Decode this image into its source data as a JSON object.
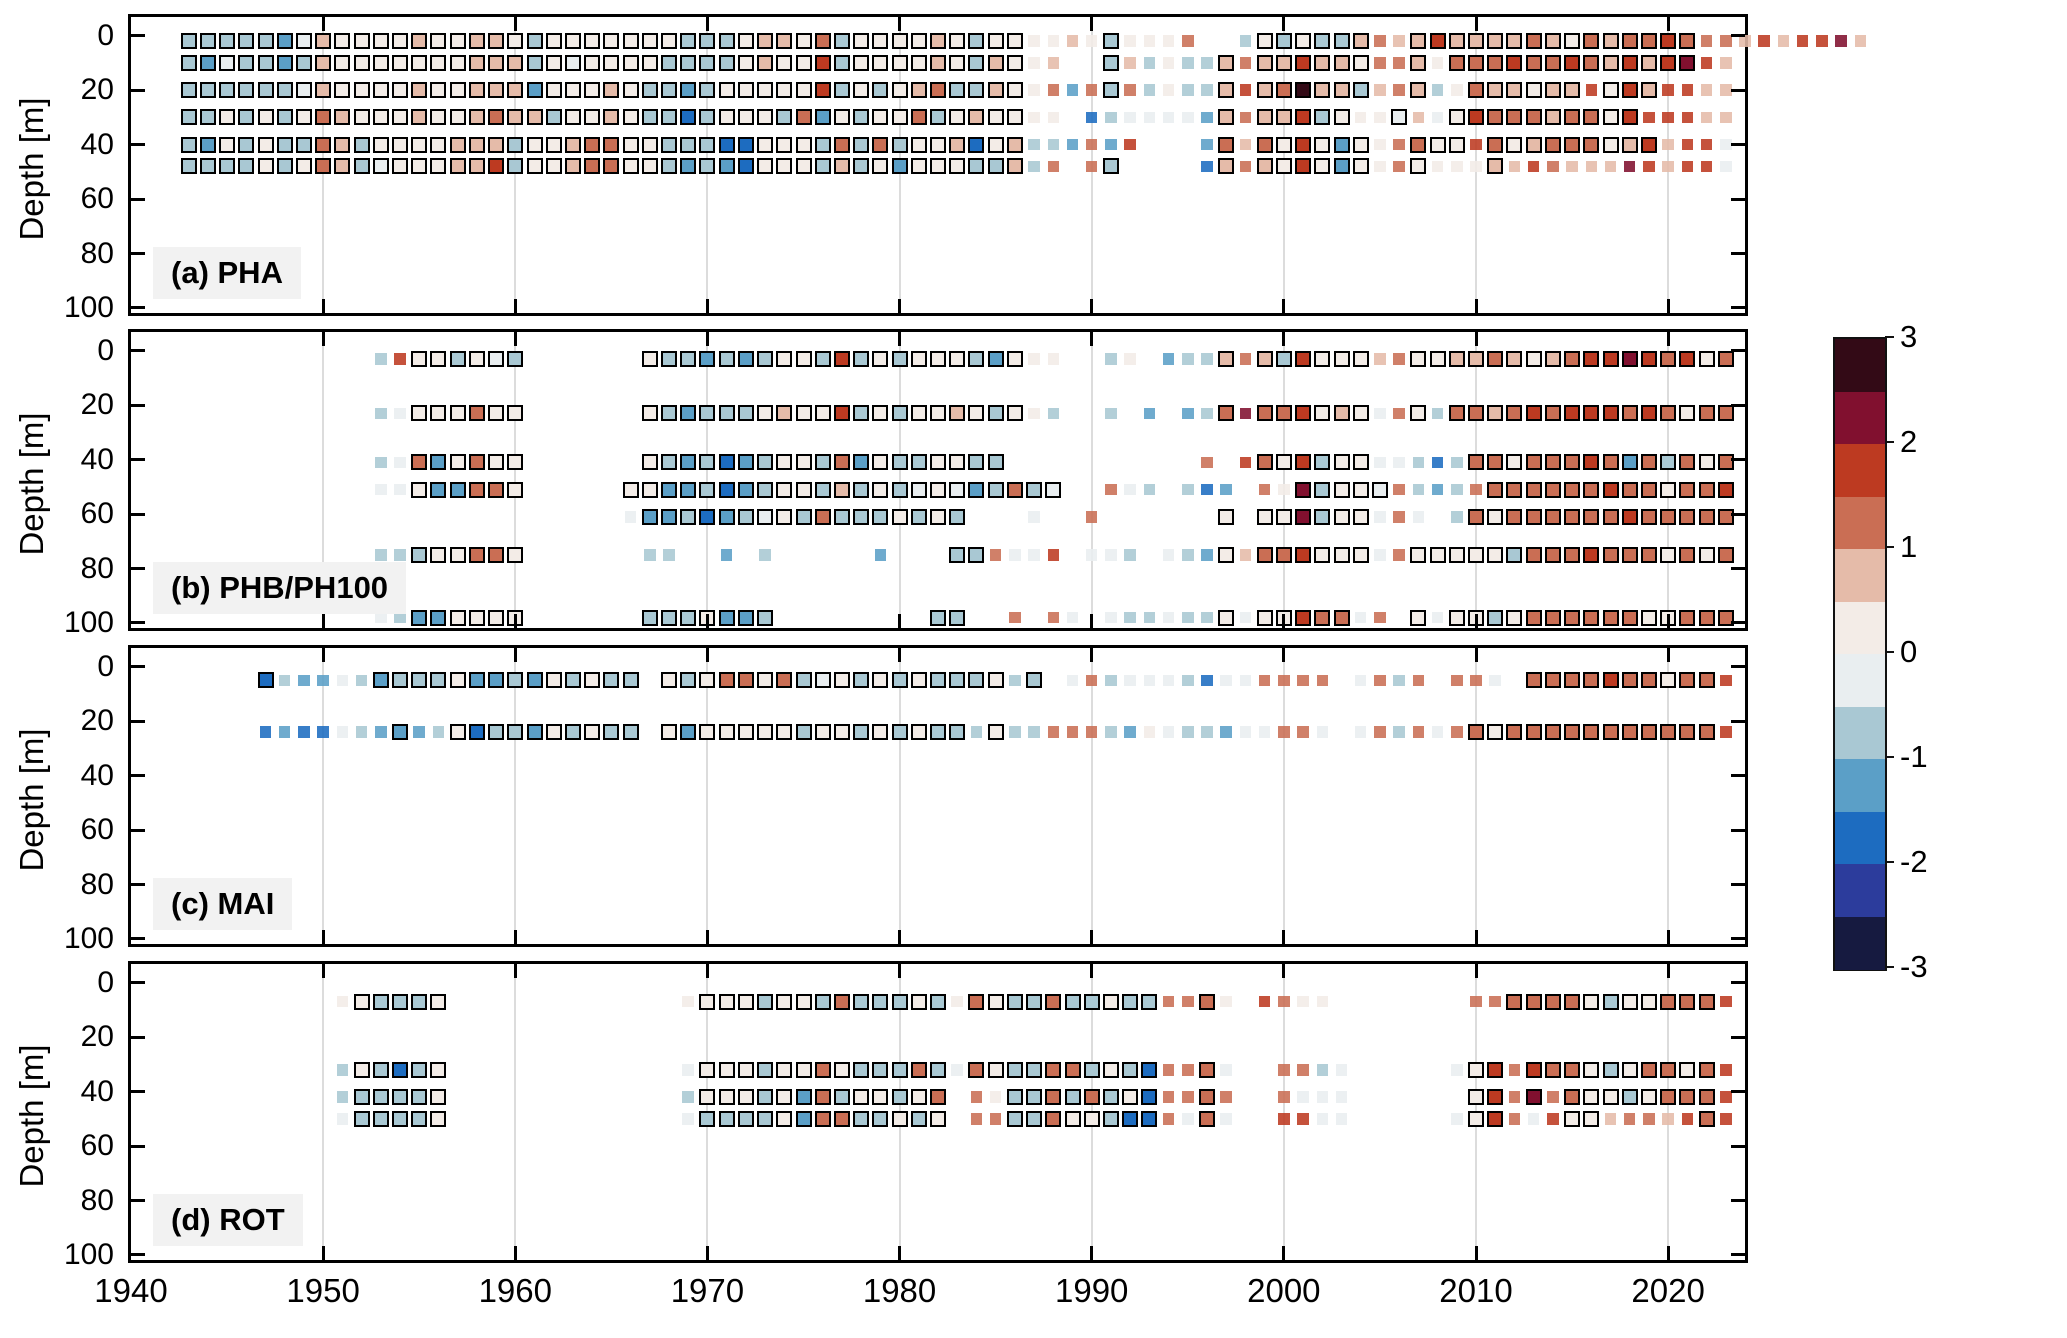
{
  "chart_data": {
    "type": "heatmap",
    "title": "",
    "xlabel": "",
    "ylabel": "Depth [m]",
    "x_range": [
      1940,
      2024
    ],
    "x_ticks": [
      1940,
      1950,
      1960,
      1970,
      1980,
      1990,
      2000,
      2010,
      2020
    ],
    "y_ticks": [
      0,
      20,
      40,
      60,
      80,
      100
    ],
    "y_range": [
      0,
      100
    ],
    "grid": "vertical gridlines at decades",
    "legend_position": "right colorbar",
    "value_range": [
      -3,
      3
    ],
    "colorbar_ticks": [
      3,
      2,
      1,
      0,
      -1,
      -2,
      -3
    ],
    "palette": [
      "#161a40",
      "#2c3c9c",
      "#1d6cc0",
      "#5b9fc7",
      "#a9c8d3",
      "#e9eef0",
      "#f3ece7",
      "#e5bba9",
      "#ca6e54",
      "#bd3a21",
      "#81102f",
      "#330a16"
    ],
    "palette_levels": "index 0 = [-3,-2.5] ... index 11 = [2.5,3], 0.5 wide bins",
    "cell_encoding": "vals: one hex char per year from start (0-9,a,b = palette index, . = no data); out: 1 = bold outlined square, 0 = small plain square",
    "panels": [
      {
        "id": "a",
        "label": "(a) PHA",
        "rows": [
          {
            "depth": 2,
            "start": 1943,
            "vals": "44444357666676677646666666444677684666676466667646668..4646447877977778768788988879799a7",
            "out": "1111111111111111111111111111111111111111111100..10000010111111001111111111111110000"
          },
          {
            "depth": 10,
            "start": 1943,
            "vals": "4354434766666667774656666444467669466667647667..474644787797768876888988987979a97",
            "out": "1111111111111111111111111111111111111111111100..10000010111111001011111111111110000"
          },
          {
            "depth": 20,
            "start": 1943,
            "vals": "4444445766667667773666764434666669464678447668384846447978b774787468776779697 9977",
            "out": "1111111111111111111111111111111111111111111100001000001011111100100111111 01110000"
          },
          {
            "depth": 30,
            "start": 1943,
            "vals": "44646468766676678774667644246664836466846766 66.245555378779466657569888788699 9977",
            "out": "11111111111111111111111111111111111111111111 00.000000010111110010011111111110000"
          },
          {
            "depth": 40,
            "start": 1943,
            "vals": "43646448746666777466788664442266648484667267443839...38786963668866986788867 97995",
            "out": "11111111111111111111111111111111111111111111000000...01011111100111011111111 10000"
          },
          {
            "depth": 48,
            "start": 1943,
            "vals": "444464687456667794667886643432666474636664474 8.84....278769636686666779877 7a97995",
            "out": "11111111111111111111111111111111111111111111 00.01....0101111110010001000000 000000"
          }
        ]
      },
      {
        "id": "b",
        "label": "(b) PHB/PH100",
        "rows": [
          {
            "depth": 3,
            "start": 1953,
            "vals": "49664654......6443434664946466643666..46.3447874966678667 78767899a98968",
            "out": "00111111......1111111111111111111100..00.0001011111100111 11111111111111"
          },
          {
            "depth": 23,
            "start": 1953,
            "vals": "45666866......6434446766946466764664..4.3.348a88967658648 87898999898688",
            "out": "00111111......1111111111111111111100..0.0.001011111100101 11111111111111"
          },
          {
            "depth": 41,
            "start": 1953,
            "vals": "45836866......6434234664836446644..........8.986946655424 88688898384868",
            "out": "00111111......1111111111111111111..........0.011111100000 11111111111111"
          },
          {
            "depth": 51,
            "start": 1953,
            "vals": "55633886.....66334234664746456534845..854.423.86a46658434 88888889886889",
            "out": "00111111.....1111111111111111111111100..000.000.111110000 01111111111111"
          },
          {
            "depth": 61,
            "start": 1953,
            "vals": ".............533423456484446464...5..8......6.66a466585.4 86888888988888",
            "out": ".............011111111111111111...0..0......1.111111000.0 11111111111111"
          },
          {
            "depth": 75,
            "start": 1953,
            "vals": "44466886......44..3.4.....3...448559.554.5436788966658666 66488898886868",
            "out": "00111111......00..0.0.....0...110000.000.0001011111100111 11111111111111"
          },
          {
            "depth": 98,
            "start": 1953,
            "vals": "54336666......4446334........44..8.85.544544656698858.656 64688888866888",
            "out": "00111111......1111111........11..0.00.000000101111100.101 11111111111111"
          }
        ]
      },
      {
        "id": "c",
        "label": "(c) MAI",
        "rows": [
          {
            "depth": 5,
            "start": 1947,
            "vals": "24335434446334364644.646886845646464446 44.58455542558888.5848.885.88889886889",
            "out": "10000011111111111111.111111111111111111 01.00000000000000.0000.000.11111111110"
          },
          {
            "depth": 24,
            "start": 1947,
            "vals": "23225433346244364644.636666646646464446 44888436544355885.58485886888888888889",
            "out": "00000001001111111111.111111111111111101 00000000000000000.00000011111111111110"
          }
        ]
      },
      {
        "id": "d",
        "label": "(d) ROT",
        "rows": [
          {
            "depth": 7,
            "start": 1951,
            "vals": "664446............666646648444646864484 46448886.9866.......88888864668889",
            "out": "011111............011111111111110111111 11110010.0000.......00111111111110"
          },
          {
            "depth": 32,
            "start": 1951,
            "vals": "464246............566646686444845864488 46428885..8845.....569898864688689",
            "out": "011111............011111111111110111111 11110010..0000.....011011111111110"
          },
          {
            "depth": 42,
            "start": 1951,
            "vals": "444446............46664638466468.864484 84628888..8555......698a8866468889",
            "out": "011111............0111111111111110.11111 1110010..0000......11010111111110"
          },
          {
            "depth": 50,
            "start": 1951,
            "vals": "544446............54444638844646.884486 64228585..9955.....569859667887989",
            "out": "011111............0111111111111110.11111 1110010..0000.....011000110000010"
          }
        ]
      }
    ]
  }
}
